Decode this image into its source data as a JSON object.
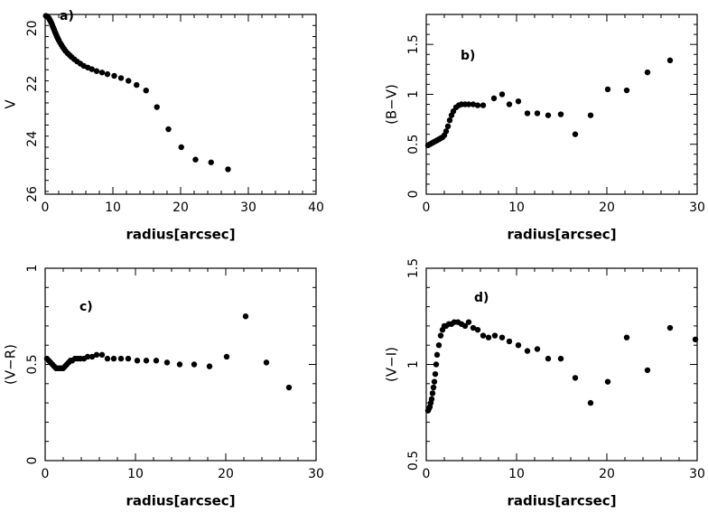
{
  "chart_data": [
    {
      "type": "scatter",
      "panel_label": "a)",
      "xlabel": "radius[arcsec]",
      "ylabel": "V",
      "xlim": [
        0,
        40
      ],
      "ylim": [
        26,
        19.5
      ],
      "y_inverted": true,
      "xticks": [
        0,
        10,
        20,
        30,
        40
      ],
      "yticks": [
        20,
        22,
        24,
        26
      ],
      "x": [
        0.1,
        0.2,
        0.3,
        0.4,
        0.5,
        0.6,
        0.7,
        0.8,
        0.9,
        1.0,
        1.1,
        1.2,
        1.3,
        1.4,
        1.5,
        1.6,
        1.7,
        1.8,
        1.9,
        2.0,
        2.2,
        2.4,
        2.6,
        2.8,
        3.0,
        3.3,
        3.6,
        3.9,
        4.3,
        4.7,
        5.2,
        5.7,
        6.3,
        6.9,
        7.6,
        8.4,
        9.2,
        10.2,
        11.2,
        12.3,
        13.5,
        14.9,
        16.5,
        18.2,
        20.1,
        22.2,
        24.5,
        27.0
      ],
      "values": [
        19.55,
        19.56,
        19.57,
        19.59,
        19.62,
        19.66,
        19.7,
        19.75,
        19.8,
        19.86,
        19.92,
        19.98,
        20.04,
        20.1,
        20.16,
        20.22,
        20.28,
        20.33,
        20.38,
        20.43,
        20.52,
        20.6,
        20.68,
        20.75,
        20.82,
        20.9,
        20.97,
        21.04,
        21.12,
        21.2,
        21.28,
        21.36,
        21.42,
        21.48,
        21.55,
        21.6,
        21.66,
        21.72,
        21.8,
        21.9,
        22.05,
        22.25,
        22.85,
        23.65,
        24.3,
        24.75,
        24.85,
        25.1
      ],
      "grid": false
    },
    {
      "type": "scatter",
      "panel_label": "b)",
      "xlabel": "radius[arcsec]",
      "ylabel": "(B−V)",
      "xlim": [
        0,
        30
      ],
      "ylim": [
        0,
        1.8
      ],
      "xticks": [
        0,
        10,
        20,
        30
      ],
      "yticks": [
        0,
        0.5,
        1,
        1.5
      ],
      "ytick_labels": [
        "0",
        "0.5",
        "1",
        "1.5"
      ],
      "x": [
        0.2,
        0.4,
        0.6,
        0.8,
        1.0,
        1.2,
        1.4,
        1.6,
        1.8,
        2.0,
        2.2,
        2.4,
        2.6,
        2.8,
        3.0,
        3.3,
        3.6,
        3.9,
        4.3,
        4.7,
        5.2,
        5.7,
        6.3,
        7.5,
        8.4,
        9.2,
        10.2,
        11.2,
        12.3,
        13.5,
        14.9,
        16.5,
        18.2,
        20.1,
        22.2,
        24.5,
        27.0
      ],
      "values": [
        0.49,
        0.5,
        0.51,
        0.52,
        0.53,
        0.54,
        0.55,
        0.56,
        0.57,
        0.59,
        0.63,
        0.68,
        0.74,
        0.79,
        0.83,
        0.87,
        0.89,
        0.9,
        0.9,
        0.9,
        0.9,
        0.89,
        0.89,
        0.96,
        1.0,
        0.9,
        0.93,
        0.81,
        0.81,
        0.79,
        0.8,
        0.6,
        0.79,
        1.05,
        1.04,
        1.22,
        1.34
      ],
      "grid": false
    },
    {
      "type": "scatter",
      "panel_label": "c)",
      "xlabel": "radius[arcsec]",
      "ylabel": "(V−R)",
      "xlim": [
        0,
        30
      ],
      "ylim": [
        0,
        1
      ],
      "xticks": [
        0,
        10,
        20,
        30
      ],
      "yticks": [
        0,
        0.5,
        1
      ],
      "ytick_labels": [
        "0",
        "0.5",
        "1"
      ],
      "x": [
        0.2,
        0.4,
        0.6,
        0.8,
        1.0,
        1.2,
        1.4,
        1.6,
        1.8,
        2.0,
        2.2,
        2.4,
        2.6,
        2.8,
        3.0,
        3.3,
        3.6,
        3.9,
        4.3,
        4.7,
        5.2,
        5.7,
        6.3,
        6.9,
        7.6,
        8.4,
        9.2,
        10.2,
        11.2,
        12.3,
        13.5,
        14.9,
        16.5,
        18.2,
        20.1,
        22.2,
        24.5,
        27.0
      ],
      "values": [
        0.53,
        0.52,
        0.51,
        0.5,
        0.49,
        0.48,
        0.48,
        0.48,
        0.48,
        0.48,
        0.49,
        0.5,
        0.51,
        0.52,
        0.52,
        0.53,
        0.53,
        0.53,
        0.53,
        0.54,
        0.54,
        0.55,
        0.55,
        0.53,
        0.53,
        0.53,
        0.53,
        0.52,
        0.52,
        0.52,
        0.51,
        0.5,
        0.5,
        0.49,
        0.54,
        0.75,
        0.51,
        0.38
      ],
      "grid": false
    },
    {
      "type": "scatter",
      "panel_label": "d)",
      "xlabel": "radius[arcsec]",
      "ylabel": "(V−I)",
      "xlim": [
        0,
        30
      ],
      "ylim": [
        0.5,
        1.5
      ],
      "xticks": [
        0,
        10,
        20,
        30
      ],
      "yticks": [
        0.5,
        1,
        1.5
      ],
      "ytick_labels": [
        "0.5",
        "1",
        "1.5"
      ],
      "x": [
        0.2,
        0.3,
        0.4,
        0.5,
        0.6,
        0.7,
        0.8,
        0.9,
        1.0,
        1.1,
        1.2,
        1.4,
        1.6,
        1.8,
        2.0,
        2.2,
        2.5,
        2.8,
        3.1,
        3.5,
        3.9,
        4.3,
        4.7,
        5.2,
        5.7,
        6.3,
        6.9,
        7.6,
        8.4,
        9.2,
        10.2,
        11.2,
        12.3,
        13.5,
        14.9,
        16.5,
        18.2,
        20.1,
        22.2,
        24.5,
        27.0,
        29.8
      ],
      "values": [
        0.76,
        0.77,
        0.78,
        0.8,
        0.82,
        0.85,
        0.88,
        0.91,
        0.95,
        1.0,
        1.05,
        1.1,
        1.15,
        1.18,
        1.2,
        1.2,
        1.21,
        1.21,
        1.22,
        1.22,
        1.21,
        1.2,
        1.22,
        1.19,
        1.18,
        1.15,
        1.14,
        1.15,
        1.14,
        1.12,
        1.1,
        1.07,
        1.08,
        1.03,
        1.03,
        0.93,
        0.8,
        0.91,
        1.14,
        0.97,
        1.19,
        1.13
      ],
      "grid": false
    }
  ]
}
